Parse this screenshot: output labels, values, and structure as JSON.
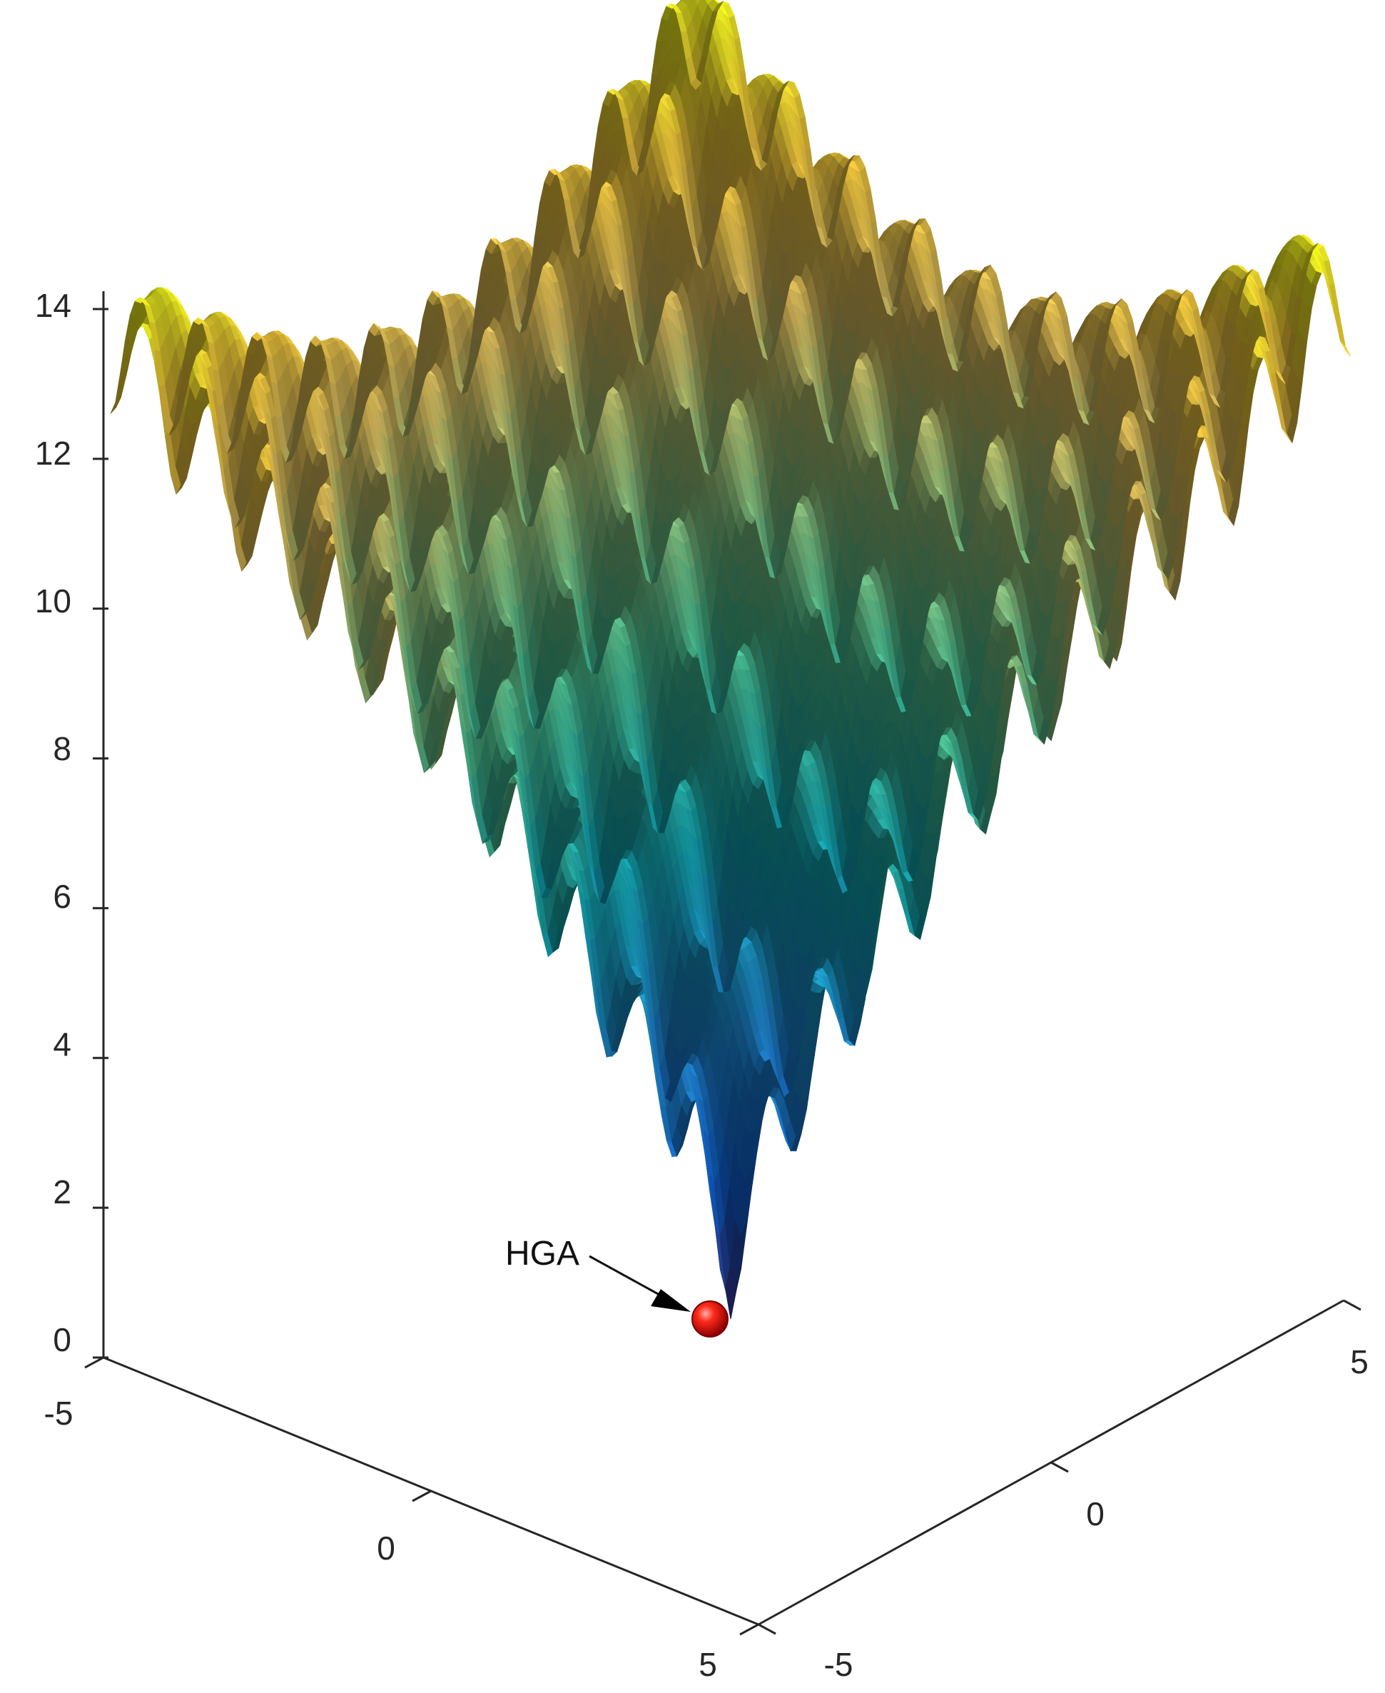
{
  "chart_data": {
    "type": "surface",
    "function": "ackley",
    "x_ticks": [
      -5,
      0,
      5
    ],
    "y_ticks": [
      -5,
      0,
      5
    ],
    "z_ticks": [
      0,
      2,
      4,
      6,
      8,
      10,
      12,
      14
    ],
    "xlim": [
      -5,
      5
    ],
    "ylim": [
      -5,
      5
    ],
    "zlim": [
      0,
      14
    ],
    "grid": false,
    "colormap": "parula",
    "annotation": {
      "text": "HGA",
      "point": [
        0,
        0,
        0
      ],
      "marker_color": "#d40000"
    }
  }
}
